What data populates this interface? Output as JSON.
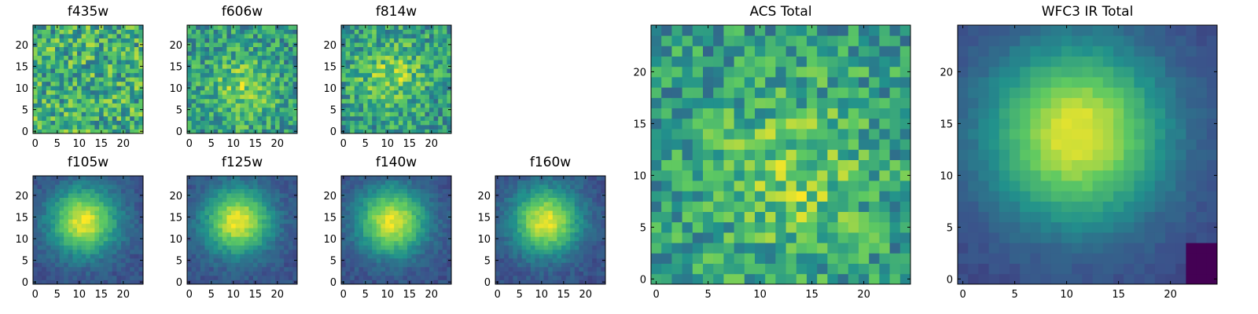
{
  "chart_data": [
    {
      "type": "heatmap",
      "title": "f435w",
      "xticks": [
        0,
        5,
        10,
        15,
        20
      ],
      "yticks": [
        0,
        5,
        10,
        15,
        20
      ],
      "xlim": [
        0,
        24
      ],
      "ylim": [
        0,
        24
      ],
      "pattern": "noise",
      "center": [
        12,
        12
      ]
    },
    {
      "type": "heatmap",
      "title": "f606w",
      "xticks": [
        0,
        5,
        10,
        15,
        20
      ],
      "yticks": [
        0,
        5,
        10,
        15,
        20
      ],
      "xlim": [
        0,
        24
      ],
      "ylim": [
        0,
        24
      ],
      "pattern": "faint",
      "center": [
        12,
        10
      ]
    },
    {
      "type": "heatmap",
      "title": "f814w",
      "xticks": [
        0,
        5,
        10,
        15,
        20
      ],
      "yticks": [
        0,
        5,
        10,
        15,
        20
      ],
      "xlim": [
        0,
        24
      ],
      "ylim": [
        0,
        24
      ],
      "pattern": "faint",
      "center": [
        11,
        13
      ]
    },
    {
      "type": "heatmap",
      "title": "f105w",
      "xticks": [
        0,
        5,
        10,
        15,
        20
      ],
      "yticks": [
        0,
        5,
        10,
        15,
        20
      ],
      "xlim": [
        0,
        24
      ],
      "ylim": [
        0,
        24
      ],
      "pattern": "blob",
      "center": [
        11,
        14
      ]
    },
    {
      "type": "heatmap",
      "title": "f125w",
      "xticks": [
        0,
        5,
        10,
        15,
        20
      ],
      "yticks": [
        0,
        5,
        10,
        15,
        20
      ],
      "xlim": [
        0,
        24
      ],
      "ylim": [
        0,
        24
      ],
      "pattern": "blob",
      "center": [
        11,
        14
      ]
    },
    {
      "type": "heatmap",
      "title": "f140w",
      "xticks": [
        0,
        5,
        10,
        15,
        20
      ],
      "yticks": [
        0,
        5,
        10,
        15,
        20
      ],
      "xlim": [
        0,
        24
      ],
      "ylim": [
        0,
        24
      ],
      "pattern": "blob",
      "center": [
        11,
        14
      ]
    },
    {
      "type": "heatmap",
      "title": "f160w",
      "xticks": [
        0,
        5,
        10,
        15,
        20
      ],
      "yticks": [
        0,
        5,
        10,
        15,
        20
      ],
      "xlim": [
        0,
        24
      ],
      "ylim": [
        0,
        24
      ],
      "pattern": "blob",
      "center": [
        11,
        14
      ]
    },
    {
      "type": "heatmap",
      "title": "ACS Total",
      "xticks": [
        0,
        5,
        10,
        15,
        20
      ],
      "yticks": [
        0,
        5,
        10,
        15,
        20
      ],
      "xlim": [
        0,
        24
      ],
      "ylim": [
        0,
        24
      ],
      "pattern": "faint",
      "center": [
        13,
        10
      ]
    },
    {
      "type": "heatmap",
      "title": "WFC3 IR Total",
      "xticks": [
        0,
        5,
        10,
        15,
        20
      ],
      "yticks": [
        0,
        5,
        10,
        15,
        20
      ],
      "xlim": [
        0,
        24
      ],
      "ylim": [
        0,
        24
      ],
      "pattern": "smooth",
      "center": [
        11,
        14
      ]
    }
  ],
  "colormap": [
    "#440154",
    "#3b528b",
    "#21918c",
    "#5ec962",
    "#fde725"
  ]
}
